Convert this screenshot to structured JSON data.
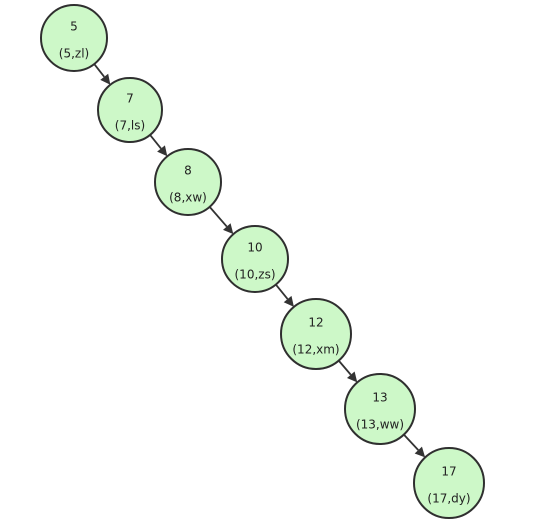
{
  "diagram": {
    "type": "linked-chain",
    "node_fill": "#cdf8c8",
    "node_stroke": "#2f2f2f",
    "edge_color": "#333333",
    "nodes": [
      {
        "key": "5",
        "entry": "(5,zl)"
      },
      {
        "key": "7",
        "entry": "(7,ls)"
      },
      {
        "key": "8",
        "entry": "(8,xw)"
      },
      {
        "key": "10",
        "entry": "(10,zs)"
      },
      {
        "key": "12",
        "entry": "(12,xm)"
      },
      {
        "key": "13",
        "entry": "(13,ww)"
      },
      {
        "key": "17",
        "entry": "(17,dy)"
      }
    ],
    "edges": [
      {
        "from": "5",
        "to": "7"
      },
      {
        "from": "7",
        "to": "8"
      },
      {
        "from": "8",
        "to": "10"
      },
      {
        "from": "10",
        "to": "12"
      },
      {
        "from": "12",
        "to": "13"
      },
      {
        "from": "13",
        "to": "17"
      }
    ]
  }
}
